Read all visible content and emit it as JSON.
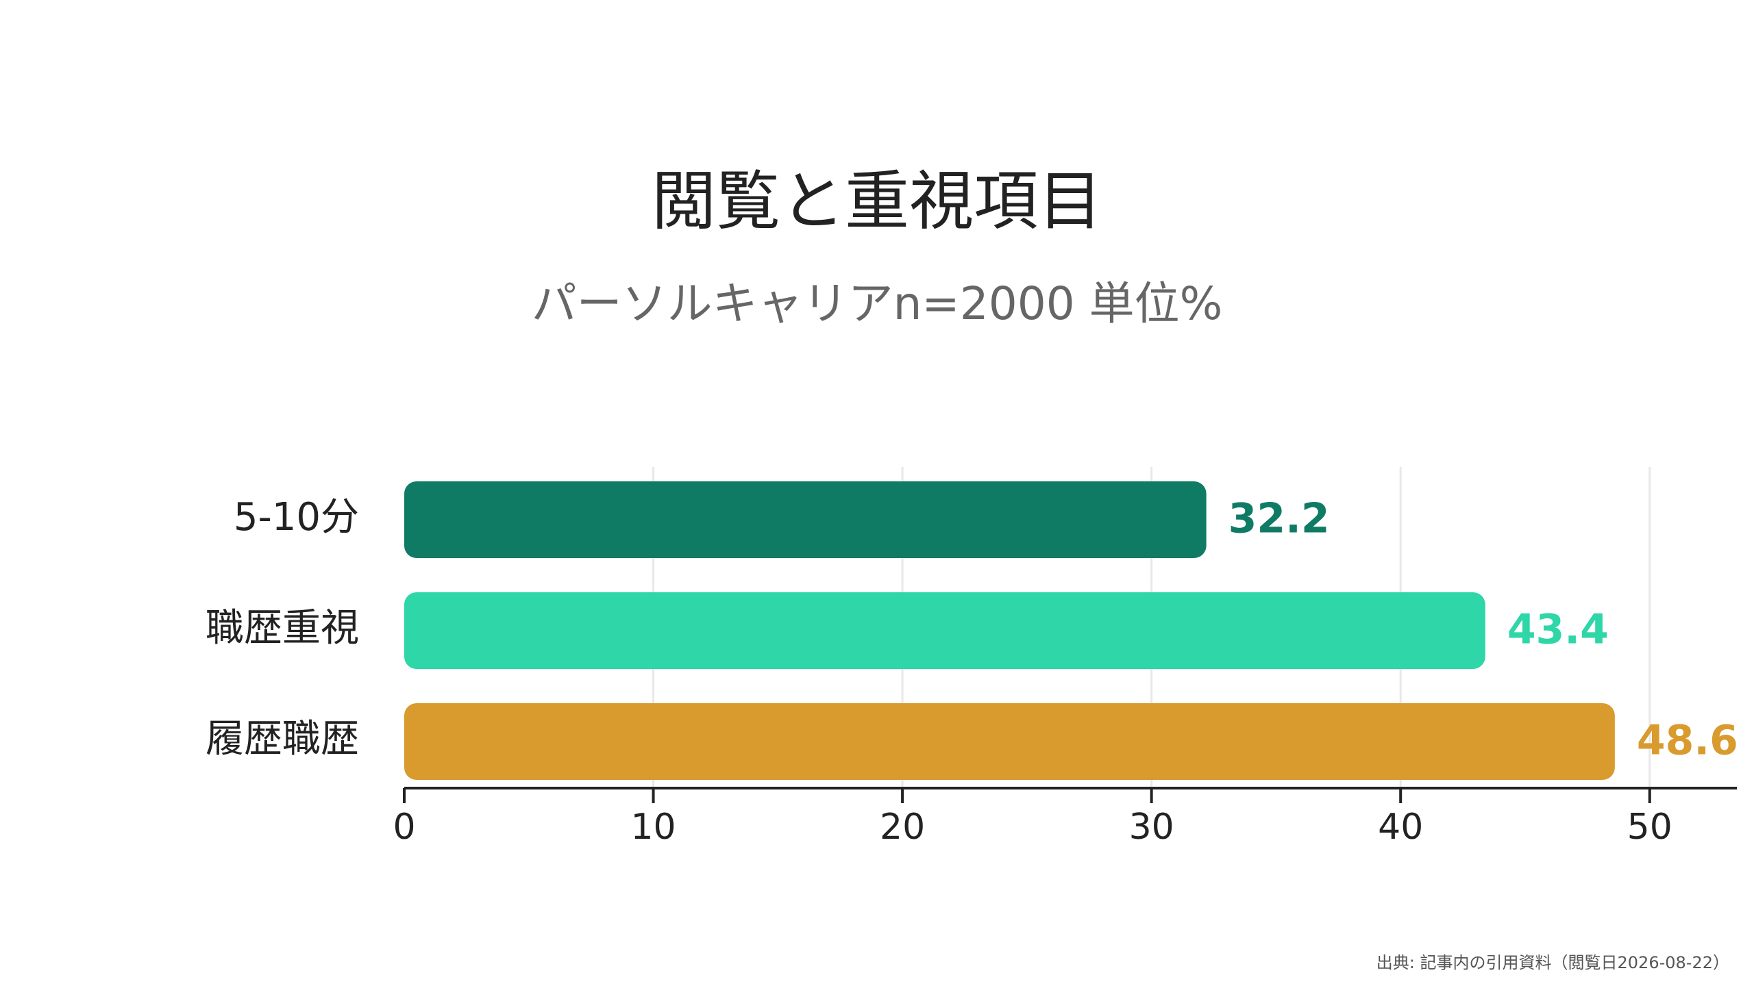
{
  "chart_data": {
    "type": "bar",
    "orientation": "horizontal",
    "title": "閲覧と重視項目",
    "subtitle": "パーソルキャリアn=2000 単位%",
    "categories": [
      "5-10分",
      "職歴重視",
      "履歴職歴"
    ],
    "values": [
      32.2,
      43.4,
      48.6
    ],
    "value_labels": [
      "32.2",
      "43.4",
      "48.6"
    ],
    "colors": [
      "#0F7B65",
      "#2ED6A8",
      "#D99A2E"
    ],
    "xlim": [
      0,
      53.5
    ],
    "xticks": [
      0,
      10,
      20,
      30,
      40,
      50
    ],
    "xtick_labels": [
      "0",
      "10",
      "20",
      "30",
      "40",
      "50"
    ],
    "grid": "vertical",
    "xlabel": "",
    "ylabel": ""
  },
  "source": "出典: 記事内の引用資料（閲覧日2026-08-22）"
}
